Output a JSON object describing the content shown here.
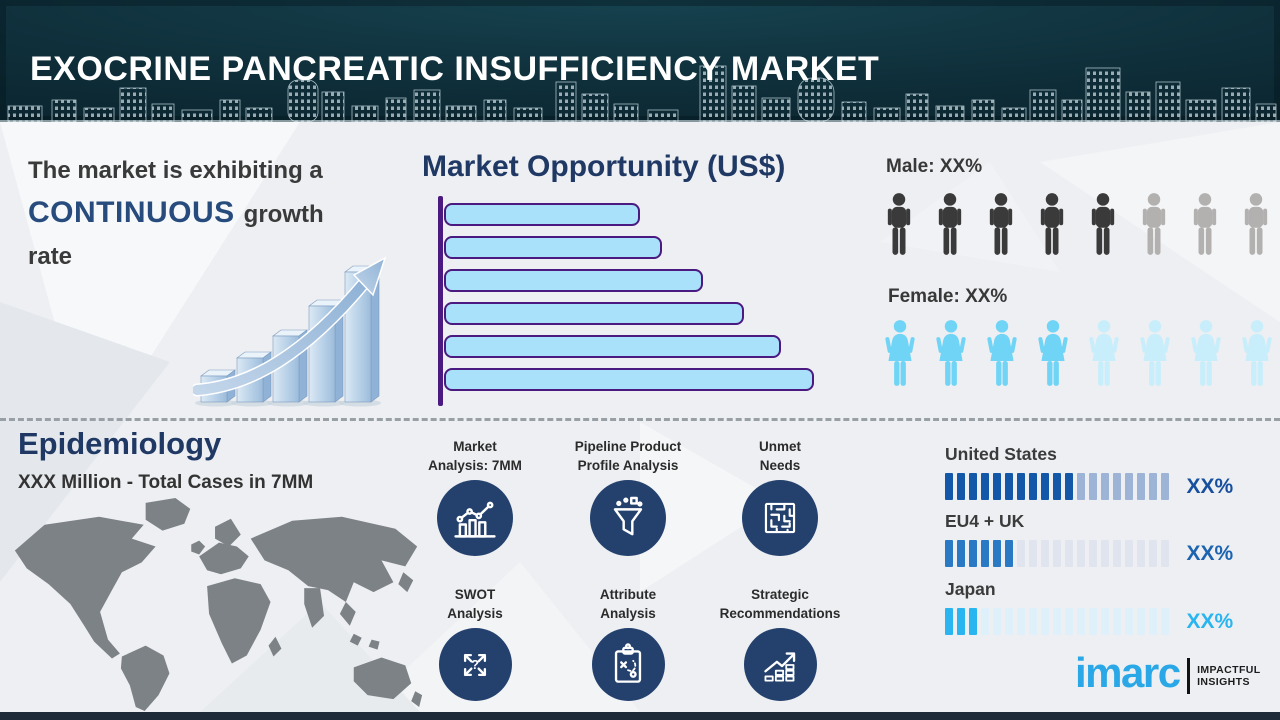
{
  "header": {
    "title": "EXOCRINE PANCREATIC INSUFFICIENCY MARKET"
  },
  "growth": {
    "prefix": "The market is exhibiting a",
    "highlight": "CONTINUOUS",
    "suffix": "growth",
    "last": "rate",
    "icon": "3d-ascending-bars-arrow-icon"
  },
  "market_opportunity": {
    "title": "Market Opportunity (US$)"
  },
  "gender": {
    "male_label": "Male: XX%",
    "female_label": "Female: XX%"
  },
  "epidemiology": {
    "title": "Epidemiology",
    "subtitle": "XXX Million - Total Cases in 7MM",
    "icon": "world-map-icon"
  },
  "services": [
    {
      "line1": "Market",
      "line2": "Analysis: 7MM",
      "icon": "bar-chart-trend-icon"
    },
    {
      "line1": "Pipeline Product",
      "line2": "Profile Analysis",
      "icon": "funnel-icon"
    },
    {
      "line1": "Unmet",
      "line2": "Needs",
      "icon": "maze-icon"
    },
    {
      "line1": "SWOT",
      "line2": "Analysis",
      "icon": "four-arrows-question-icon"
    },
    {
      "line1": "Attribute",
      "line2": "Analysis",
      "icon": "clipboard-strategy-icon"
    },
    {
      "line1": "Strategic",
      "line2": "Recommendations",
      "icon": "growth-chart-icon"
    }
  ],
  "regions": {
    "items": [
      {
        "name": "United States",
        "pct": "XX%",
        "segments_total": 19,
        "segments_filled": 11,
        "filled_color": "#1358a8",
        "empty_color": "#9db4d7",
        "pct_color": "#174f9e"
      },
      {
        "name": "EU4 + UK",
        "pct": "XX%",
        "segments_total": 19,
        "segments_filled": 6,
        "filled_color": "#2a79c4",
        "empty_color": "#dfe4ee",
        "pct_color": "#1c64b0"
      },
      {
        "name": "Japan",
        "pct": "XX%",
        "segments_total": 19,
        "segments_filled": 3,
        "filled_color": "#29b5f0",
        "empty_color": "#def1fb",
        "pct_color": "#29b5f0"
      }
    ]
  },
  "logo": {
    "brand": "imarc",
    "tagline1": "IMPACTFUL",
    "tagline2": "INSIGHTS"
  },
  "colors": {
    "header_bg": "#0e2d38",
    "navy_heading": "#1f3864",
    "highlight_navy": "#274b7c",
    "mo_bar_fill": "#a8e1f9",
    "mo_bar_border": "#4a1a80",
    "circle_navy": "#24416e",
    "male_filled": "#3a3a3a",
    "male_empty": "#b3b0b0",
    "female_filled": "#6fd4f5",
    "female_empty": "#c8eefb",
    "map_gray": "#7d8287",
    "brand_blue": "#2aa7e6"
  },
  "chart_data": [
    {
      "type": "bar",
      "orientation": "horizontal",
      "title": "Market Opportunity (US$)",
      "categories": [
        "",
        "",
        "",
        "",
        "",
        ""
      ],
      "values": [
        53,
        59,
        70,
        81,
        91,
        100
      ],
      "ylabel": "",
      "xlabel": "",
      "note": "six unlabeled bars increasing in length top to bottom; values are % of longest bar",
      "bar_fill": "#a8e1f9",
      "bar_border": "#4a1a80",
      "grid": false,
      "legend": false
    },
    {
      "type": "pictograph",
      "title": "Male: XX%",
      "icon": "male",
      "total_icons": 8,
      "highlighted_icons": 5,
      "highlight_color": "#3a3a3a",
      "muted_color": "#b3b0b0"
    },
    {
      "type": "pictograph",
      "title": "Female: XX%",
      "icon": "female",
      "total_icons": 8,
      "highlighted_icons": 4,
      "highlight_color": "#6fd4f5",
      "muted_color": "#c8eefb"
    },
    {
      "type": "bar",
      "subtype": "segmented-progress",
      "categories": [
        "United States",
        "EU4 + UK",
        "Japan"
      ],
      "segments_total": 19,
      "segments_filled": [
        11,
        6,
        3
      ],
      "value_labels": [
        "XX%",
        "XX%",
        "XX%"
      ],
      "grid": false,
      "legend": false
    }
  ]
}
